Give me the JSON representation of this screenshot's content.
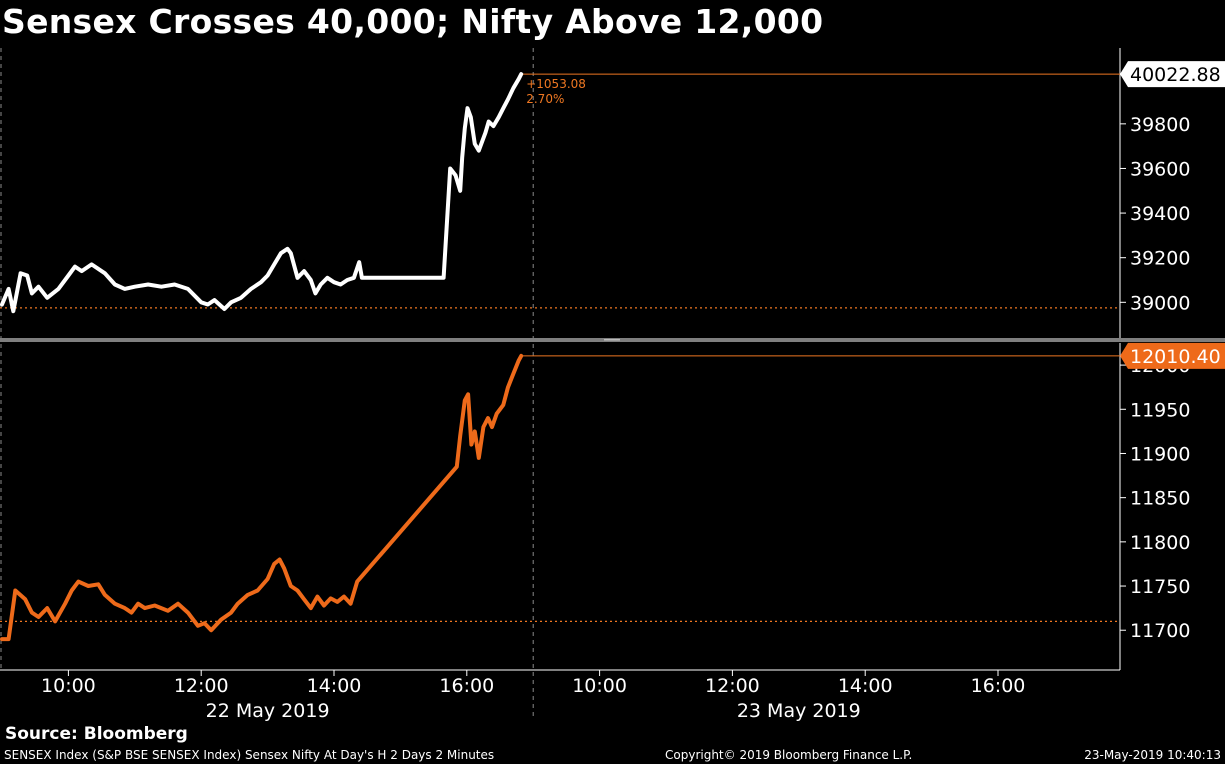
{
  "title": "Sensex Crosses 40,000; Nifty Above 12,000",
  "source": "Source: Bloomberg",
  "footer": {
    "left": "SENSEX Index (S&P BSE SENSEX Index) Sensex Nifty At Day's H 2 Days 2 Minutes",
    "center": "Copyright© 2019 Bloomberg Finance L.P.",
    "right": "23-May-2019 10:40:13"
  },
  "colors": {
    "sensex": "#ffffff",
    "nifty": "#ee6a1a",
    "reference": "#ee7722",
    "axis": "#ffffff",
    "separator": "#7f7f7f"
  },
  "chart_data": [
    {
      "type": "line",
      "name": "Sensex",
      "grid": false,
      "ylim": [
        38840,
        40140
      ],
      "yticks": [
        39000,
        39200,
        39400,
        39600,
        39800
      ],
      "last_value_label": "40022.88",
      "change_label": "+1053.08",
      "change_pct_label": "2.70%",
      "reference_level": 38975,
      "points": [
        [
          0.0,
          38990
        ],
        [
          0.1,
          39060
        ],
        [
          0.17,
          38960
        ],
        [
          0.28,
          39130
        ],
        [
          0.38,
          39120
        ],
        [
          0.45,
          39040
        ],
        [
          0.55,
          39070
        ],
        [
          0.68,
          39020
        ],
        [
          0.85,
          39060
        ],
        [
          1.0,
          39120
        ],
        [
          1.1,
          39160
        ],
        [
          1.2,
          39140
        ],
        [
          1.35,
          39170
        ],
        [
          1.55,
          39130
        ],
        [
          1.7,
          39080
        ],
        [
          1.85,
          39060
        ],
        [
          2.0,
          39070
        ],
        [
          2.2,
          39080
        ],
        [
          2.4,
          39070
        ],
        [
          2.6,
          39080
        ],
        [
          2.8,
          39060
        ],
        [
          3.0,
          39000
        ],
        [
          3.1,
          38990
        ],
        [
          3.2,
          39010
        ],
        [
          3.35,
          38970
        ],
        [
          3.45,
          39000
        ],
        [
          3.6,
          39020
        ],
        [
          3.75,
          39060
        ],
        [
          3.9,
          39090
        ],
        [
          4.0,
          39120
        ],
        [
          4.1,
          39170
        ],
        [
          4.2,
          39220
        ],
        [
          4.3,
          39240
        ],
        [
          4.35,
          39220
        ],
        [
          4.45,
          39110
        ],
        [
          4.55,
          39140
        ],
        [
          4.65,
          39100
        ],
        [
          4.72,
          39040
        ],
        [
          4.8,
          39080
        ],
        [
          4.9,
          39110
        ],
        [
          5.0,
          39090
        ],
        [
          5.1,
          39080
        ],
        [
          5.2,
          39100
        ],
        [
          5.3,
          39110
        ],
        [
          5.38,
          39180
        ],
        [
          5.42,
          39110
        ],
        [
          6.65,
          39110
        ],
        [
          6.75,
          39600
        ],
        [
          6.83,
          39570
        ],
        [
          6.9,
          39500
        ],
        [
          6.93,
          39650
        ],
        [
          6.97,
          39780
        ],
        [
          7.01,
          39870
        ],
        [
          7.06,
          39830
        ],
        [
          7.12,
          39710
        ],
        [
          7.18,
          39680
        ],
        [
          7.23,
          39720
        ],
        [
          7.28,
          39760
        ],
        [
          7.33,
          39810
        ],
        [
          7.4,
          39790
        ],
        [
          7.48,
          39830
        ],
        [
          7.55,
          39870
        ],
        [
          7.62,
          39910
        ],
        [
          7.7,
          39960
        ],
        [
          7.78,
          40000
        ],
        [
          7.82,
          40022.88
        ]
      ]
    },
    {
      "type": "line",
      "name": "Nifty",
      "grid": false,
      "ylim": [
        11655,
        12025
      ],
      "yticks": [
        11700,
        11750,
        11800,
        11850,
        11900,
        11950,
        12000
      ],
      "last_value_label": "12010.40",
      "reference_level": 11710,
      "points": [
        [
          0.0,
          11690
        ],
        [
          0.1,
          11690
        ],
        [
          0.2,
          11745
        ],
        [
          0.35,
          11735
        ],
        [
          0.45,
          11720
        ],
        [
          0.55,
          11715
        ],
        [
          0.68,
          11725
        ],
        [
          0.8,
          11710
        ],
        [
          0.95,
          11730
        ],
        [
          1.05,
          11745
        ],
        [
          1.15,
          11755
        ],
        [
          1.3,
          11750
        ],
        [
          1.45,
          11752
        ],
        [
          1.55,
          11740
        ],
        [
          1.7,
          11730
        ],
        [
          1.85,
          11725
        ],
        [
          1.95,
          11720
        ],
        [
          2.05,
          11730
        ],
        [
          2.15,
          11725
        ],
        [
          2.3,
          11728
        ],
        [
          2.5,
          11722
        ],
        [
          2.65,
          11730
        ],
        [
          2.8,
          11720
        ],
        [
          2.95,
          11705
        ],
        [
          3.05,
          11708
        ],
        [
          3.15,
          11700
        ],
        [
          3.3,
          11712
        ],
        [
          3.45,
          11720
        ],
        [
          3.55,
          11730
        ],
        [
          3.7,
          11740
        ],
        [
          3.85,
          11745
        ],
        [
          4.0,
          11758
        ],
        [
          4.1,
          11775
        ],
        [
          4.18,
          11780
        ],
        [
          4.25,
          11770
        ],
        [
          4.35,
          11750
        ],
        [
          4.45,
          11745
        ],
        [
          4.55,
          11735
        ],
        [
          4.65,
          11725
        ],
        [
          4.75,
          11738
        ],
        [
          4.85,
          11728
        ],
        [
          4.95,
          11736
        ],
        [
          5.05,
          11732
        ],
        [
          5.15,
          11738
        ],
        [
          5.25,
          11730
        ],
        [
          5.35,
          11755
        ],
        [
          6.85,
          11885
        ],
        [
          6.9,
          11920
        ],
        [
          6.97,
          11960
        ],
        [
          7.02,
          11967
        ],
        [
          7.07,
          11910
        ],
        [
          7.12,
          11925
        ],
        [
          7.18,
          11895
        ],
        [
          7.25,
          11930
        ],
        [
          7.32,
          11940
        ],
        [
          7.38,
          11930
        ],
        [
          7.45,
          11945
        ],
        [
          7.55,
          11955
        ],
        [
          7.62,
          11975
        ],
        [
          7.7,
          11990
        ],
        [
          7.78,
          12005
        ],
        [
          7.82,
          12010.4
        ]
      ]
    }
  ],
  "x_axis": {
    "ticks": [
      {
        "pos": 1,
        "label": "10:00"
      },
      {
        "pos": 3,
        "label": "12:00"
      },
      {
        "pos": 5,
        "label": "14:00"
      },
      {
        "pos": 7,
        "label": "16:00"
      },
      {
        "pos": 9,
        "label": "10:00"
      },
      {
        "pos": 11,
        "label": "12:00"
      },
      {
        "pos": 13,
        "label": "14:00"
      },
      {
        "pos": 15,
        "label": "16:00"
      }
    ],
    "day_boundary": 8,
    "dates": [
      {
        "pos": 4,
        "label": "22 May 2019"
      },
      {
        "pos": 12,
        "label": "23 May 2019"
      }
    ]
  }
}
